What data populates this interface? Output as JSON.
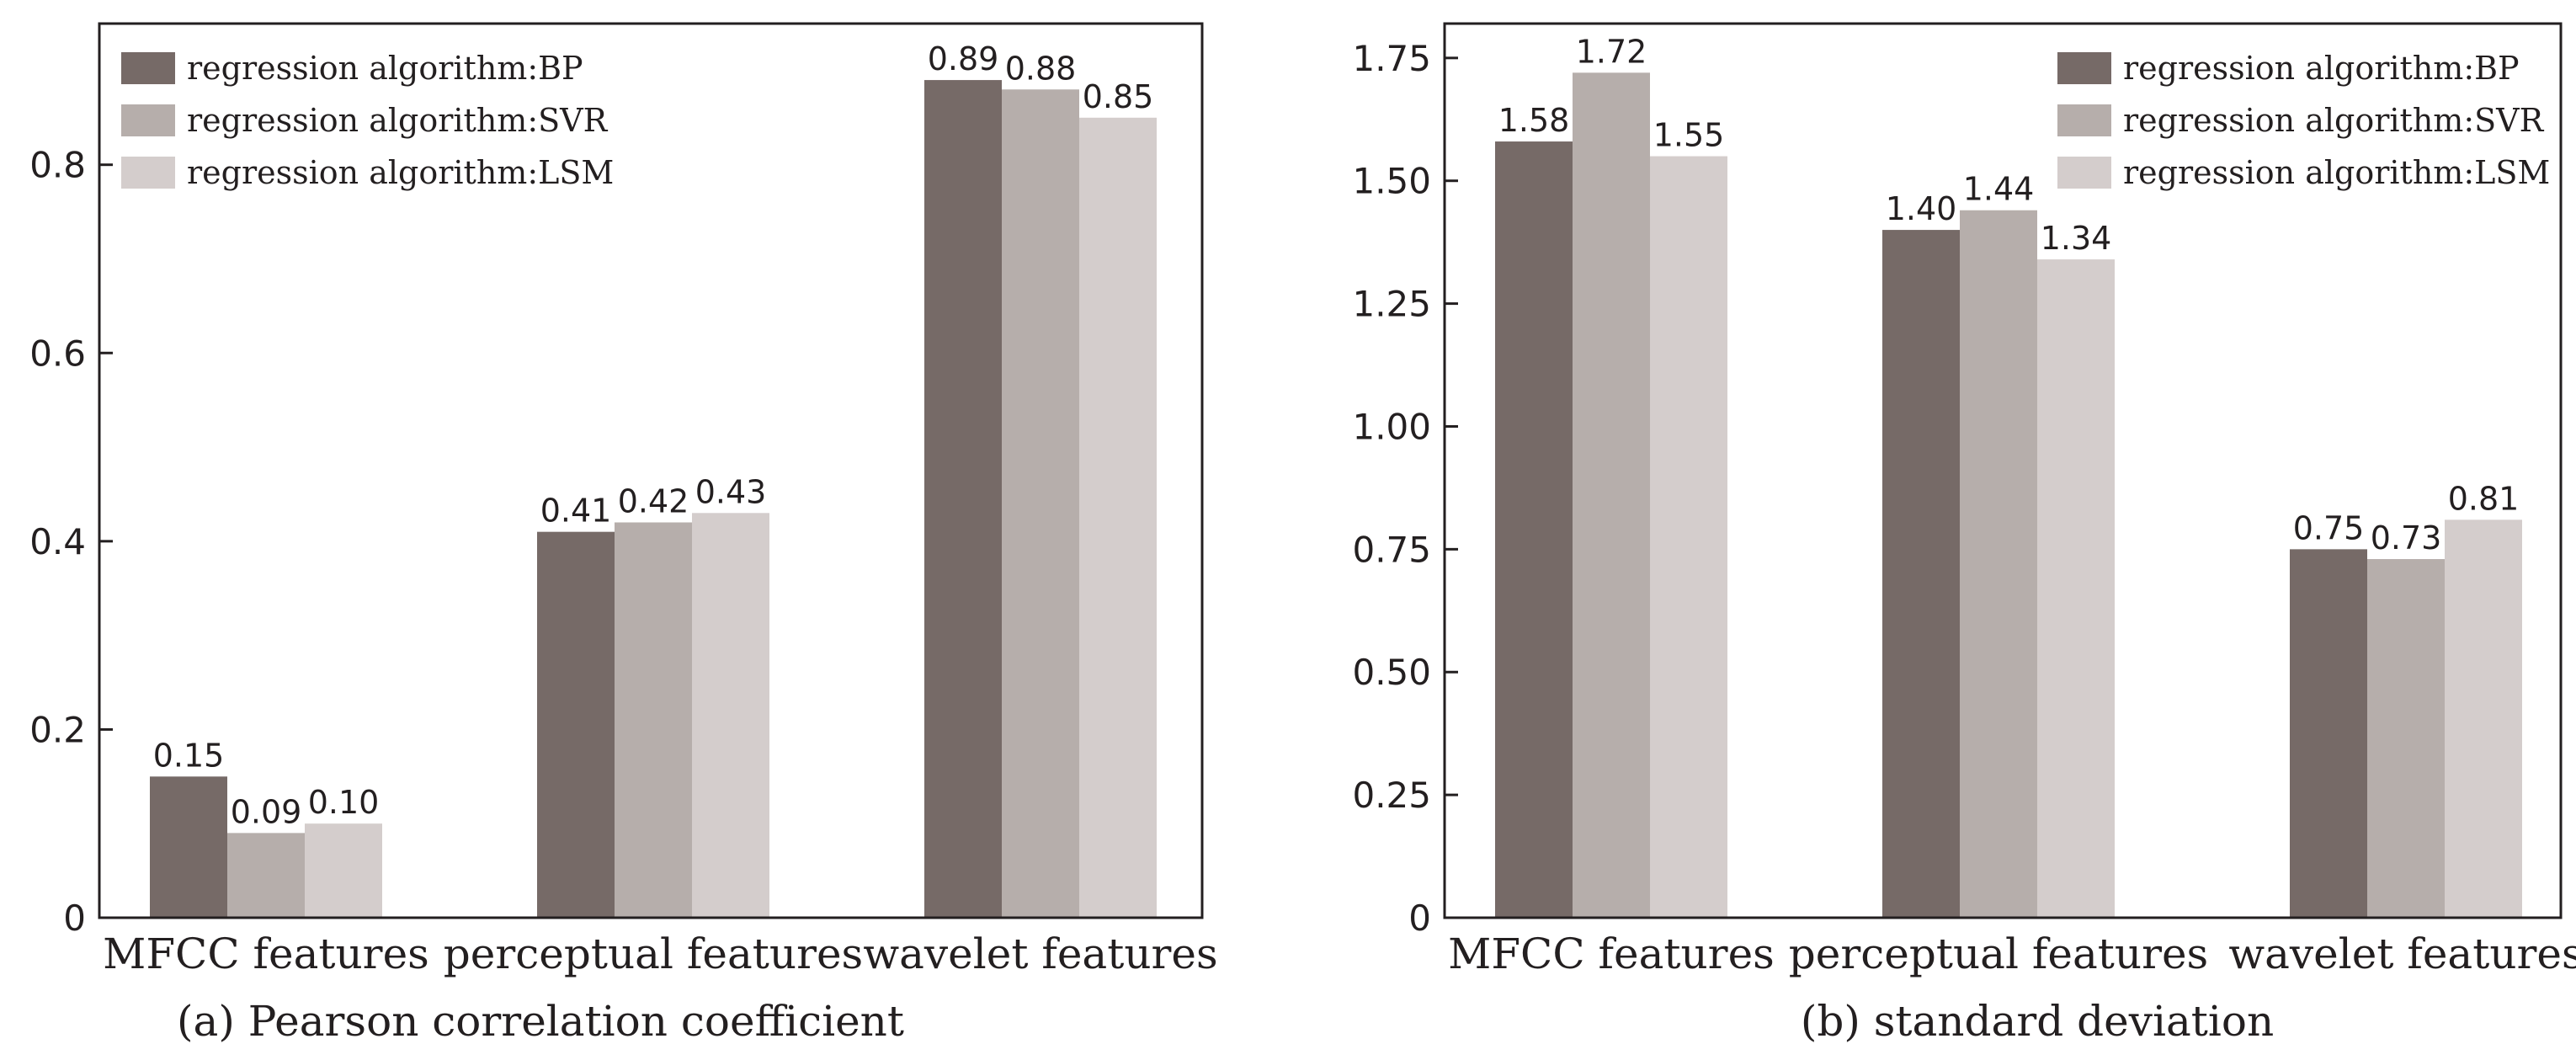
{
  "colors": {
    "bp": "#766a67",
    "svr": "#b6aeab",
    "lsm": "#d4cdcc",
    "axis": "#231f20",
    "text": "#231f20",
    "background": "#ffffff"
  },
  "chart_data": [
    {
      "type": "bar",
      "caption": "(a) Pearson correlation coefficient",
      "categories": [
        "MFCC features",
        "perceptual features",
        "wavelet features"
      ],
      "series": [
        {
          "name": "regression algorithm:BP",
          "values": [
            0.15,
            0.41,
            0.89
          ],
          "labels": [
            "0.15",
            "0.41",
            "0.89"
          ]
        },
        {
          "name": "regression algorithm:SVR",
          "values": [
            0.09,
            0.42,
            0.88
          ],
          "labels": [
            "0.09",
            "0.42",
            "0.88"
          ]
        },
        {
          "name": "regression algorithm:LSM",
          "values": [
            0.1,
            0.43,
            0.85
          ],
          "labels": [
            "0.10",
            "0.43",
            "0.85"
          ]
        }
      ],
      "ylim": [
        0,
        0.95
      ],
      "yticks": [
        0,
        0.2,
        0.4,
        0.6,
        0.8
      ],
      "ytick_labels": [
        "0",
        "0.2",
        "0.4",
        "0.6",
        "0.8"
      ],
      "legend_position": "top-left",
      "grid": false
    },
    {
      "type": "bar",
      "caption": "(b) standard deviation",
      "categories": [
        "MFCC features",
        "perceptual features",
        "wavelet features"
      ],
      "series": [
        {
          "name": "regression algorithm:BP",
          "values": [
            1.58,
            1.4,
            0.75
          ],
          "labels": [
            "1.58",
            "1.40",
            "0.75"
          ]
        },
        {
          "name": "regression algorithm:SVR",
          "values": [
            1.72,
            1.44,
            0.73
          ],
          "labels": [
            "1.72",
            "1.44",
            "0.73"
          ]
        },
        {
          "name": "regression algorithm:LSM",
          "values": [
            1.55,
            1.34,
            0.81
          ],
          "labels": [
            "1.55",
            "1.34",
            "0.81"
          ]
        }
      ],
      "ylim": [
        0,
        1.82
      ],
      "yticks": [
        0,
        0.25,
        0.5,
        0.75,
        1.0,
        1.25,
        1.5,
        1.75
      ],
      "ytick_labels": [
        "0",
        "0.25",
        "0.50",
        "0.75",
        "1.00",
        "1.25",
        "1.50",
        "1.75"
      ],
      "legend_position": "top-right",
      "grid": false
    }
  ]
}
